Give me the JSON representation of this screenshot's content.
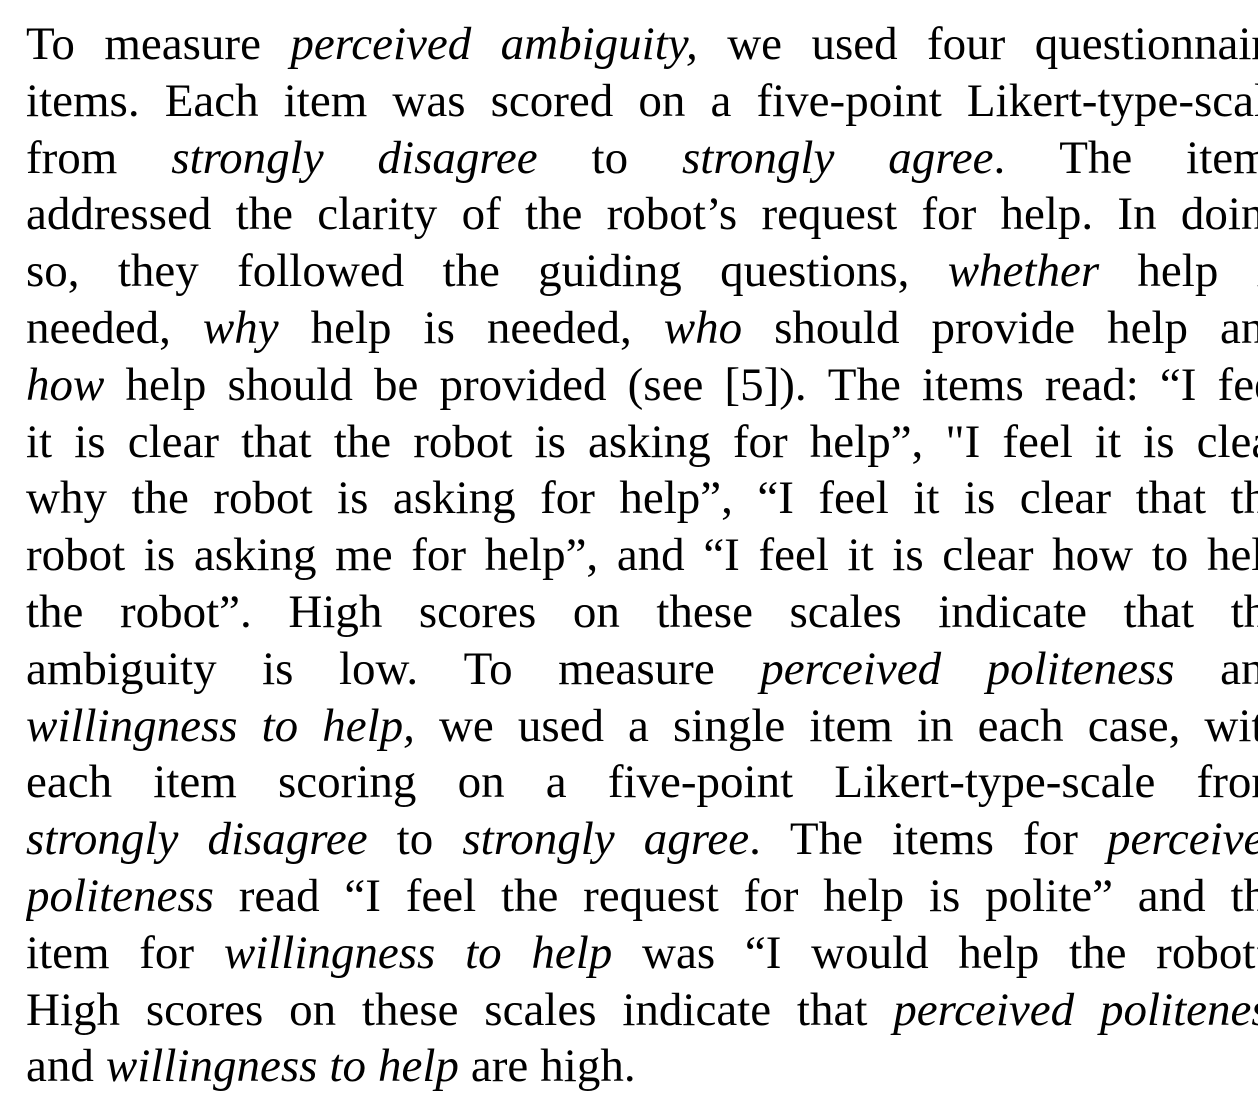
{
  "document": {
    "lines": [
      {
        "align": "justify",
        "words": [
          {
            "text": "To"
          },
          {
            "text": "measure"
          },
          {
            "text": "perceived",
            "italic": true
          },
          {
            "text": "ambiguity,",
            "italic": true
          },
          {
            "text": "we"
          },
          {
            "text": "used"
          },
          {
            "text": "four"
          },
          {
            "text": "questionnaire"
          }
        ]
      },
      {
        "align": "justify",
        "words": [
          {
            "text": "items."
          },
          {
            "text": "Each"
          },
          {
            "text": "item"
          },
          {
            "text": "was"
          },
          {
            "text": "scored"
          },
          {
            "text": "on"
          },
          {
            "text": "a"
          },
          {
            "text": "five-point"
          },
          {
            "text": "Likert-type-scale"
          }
        ]
      },
      {
        "align": "justify",
        "words": [
          {
            "text": "from"
          },
          {
            "text": "strongly",
            "italic": true
          },
          {
            "text": "disagree",
            "italic": true
          },
          {
            "text": "to"
          },
          {
            "text": "strongly",
            "italic": true
          },
          {
            "text": "agree",
            "italic": true,
            "suffix": "."
          },
          {
            "text": "The"
          },
          {
            "text": "items"
          }
        ]
      },
      {
        "align": "justify",
        "words": [
          {
            "text": "addressed"
          },
          {
            "text": "the"
          },
          {
            "text": "clarity"
          },
          {
            "text": "of"
          },
          {
            "text": "the"
          },
          {
            "text": "robot’s"
          },
          {
            "text": "request"
          },
          {
            "text": "for"
          },
          {
            "text": "help."
          },
          {
            "text": "In"
          },
          {
            "text": "doing"
          }
        ]
      },
      {
        "align": "justify",
        "words": [
          {
            "text": "so,"
          },
          {
            "text": "they"
          },
          {
            "text": "followed"
          },
          {
            "text": "the"
          },
          {
            "text": "guiding"
          },
          {
            "text": "questions,"
          },
          {
            "text": "whether",
            "italic": true
          },
          {
            "text": "help"
          },
          {
            "text": "is"
          }
        ]
      },
      {
        "align": "justify",
        "words": [
          {
            "text": "needed,"
          },
          {
            "text": "why",
            "italic": true
          },
          {
            "text": "help"
          },
          {
            "text": "is"
          },
          {
            "text": "needed,"
          },
          {
            "text": "who",
            "italic": true
          },
          {
            "text": "should"
          },
          {
            "text": "provide"
          },
          {
            "text": "help"
          },
          {
            "text": "and"
          }
        ]
      },
      {
        "align": "justify",
        "words": [
          {
            "text": "how",
            "italic": true
          },
          {
            "text": "help"
          },
          {
            "text": "should"
          },
          {
            "text": "be"
          },
          {
            "text": "provided"
          },
          {
            "text": "(see"
          },
          {
            "text": "[5])."
          },
          {
            "text": "The"
          },
          {
            "text": "items"
          },
          {
            "text": "read:"
          },
          {
            "text": "“I"
          },
          {
            "text": "feel"
          }
        ]
      },
      {
        "align": "justify",
        "words": [
          {
            "text": "it"
          },
          {
            "text": "is"
          },
          {
            "text": "clear"
          },
          {
            "text": "that"
          },
          {
            "text": "the"
          },
          {
            "text": "robot"
          },
          {
            "text": "is"
          },
          {
            "text": "asking"
          },
          {
            "text": "for"
          },
          {
            "text": "help”,"
          },
          {
            "text": "\"I"
          },
          {
            "text": "feel"
          },
          {
            "text": "it"
          },
          {
            "text": "is"
          },
          {
            "text": "clear"
          }
        ]
      },
      {
        "align": "justify",
        "words": [
          {
            "text": "why"
          },
          {
            "text": "the"
          },
          {
            "text": "robot"
          },
          {
            "text": "is"
          },
          {
            "text": "asking"
          },
          {
            "text": "for"
          },
          {
            "text": "help”,"
          },
          {
            "text": "“I"
          },
          {
            "text": "feel"
          },
          {
            "text": "it"
          },
          {
            "text": "is"
          },
          {
            "text": "clear"
          },
          {
            "text": "that"
          },
          {
            "text": "the"
          }
        ]
      },
      {
        "align": "justify",
        "words": [
          {
            "text": "robot"
          },
          {
            "text": "is"
          },
          {
            "text": "asking"
          },
          {
            "text": "me"
          },
          {
            "text": "for"
          },
          {
            "text": "help”,"
          },
          {
            "text": "and"
          },
          {
            "text": "“I"
          },
          {
            "text": "feel"
          },
          {
            "text": "it"
          },
          {
            "text": "is"
          },
          {
            "text": "clear"
          },
          {
            "text": "how"
          },
          {
            "text": "to"
          },
          {
            "text": "help"
          }
        ]
      },
      {
        "align": "justify",
        "words": [
          {
            "text": "the"
          },
          {
            "text": "robot”."
          },
          {
            "text": "High"
          },
          {
            "text": "scores"
          },
          {
            "text": "on"
          },
          {
            "text": "these"
          },
          {
            "text": "scales"
          },
          {
            "text": "indicate"
          },
          {
            "text": "that"
          },
          {
            "text": "the"
          }
        ]
      },
      {
        "align": "justify",
        "words": [
          {
            "text": "ambiguity"
          },
          {
            "text": "is"
          },
          {
            "text": "low."
          },
          {
            "text": "To"
          },
          {
            "text": "measure"
          },
          {
            "text": "perceived",
            "italic": true
          },
          {
            "text": "politeness",
            "italic": true
          },
          {
            "text": "and"
          }
        ]
      },
      {
        "align": "justify",
        "words": [
          {
            "text": "willingness",
            "italic": true
          },
          {
            "text": "to",
            "italic": true
          },
          {
            "text": "help,",
            "italic": true
          },
          {
            "text": "we"
          },
          {
            "text": "used"
          },
          {
            "text": "a"
          },
          {
            "text": "single"
          },
          {
            "text": "item"
          },
          {
            "text": "in"
          },
          {
            "text": "each"
          },
          {
            "text": "case,"
          },
          {
            "text": "with"
          }
        ]
      },
      {
        "align": "justify",
        "words": [
          {
            "text": "each"
          },
          {
            "text": "item"
          },
          {
            "text": "scoring"
          },
          {
            "text": "on"
          },
          {
            "text": "a"
          },
          {
            "text": "five-point"
          },
          {
            "text": "Likert-type-scale"
          },
          {
            "text": "from"
          }
        ]
      },
      {
        "align": "justify",
        "words": [
          {
            "text": "strongly",
            "italic": true
          },
          {
            "text": "disagree",
            "italic": true
          },
          {
            "text": "to"
          },
          {
            "text": "strongly",
            "italic": true
          },
          {
            "text": "agree",
            "italic": true,
            "suffix": "."
          },
          {
            "text": "The"
          },
          {
            "text": "items"
          },
          {
            "text": "for"
          },
          {
            "text": "perceived",
            "italic": true
          }
        ]
      },
      {
        "align": "justify",
        "words": [
          {
            "text": "politeness",
            "italic": true
          },
          {
            "text": "read"
          },
          {
            "text": "“I"
          },
          {
            "text": "feel"
          },
          {
            "text": "the"
          },
          {
            "text": "request"
          },
          {
            "text": "for"
          },
          {
            "text": "help"
          },
          {
            "text": "is"
          },
          {
            "text": "polite”"
          },
          {
            "text": "and"
          },
          {
            "text": "the"
          }
        ]
      },
      {
        "align": "justify",
        "words": [
          {
            "text": "item"
          },
          {
            "text": "for"
          },
          {
            "text": "willingness",
            "italic": true
          },
          {
            "text": "to",
            "italic": true
          },
          {
            "text": "help",
            "italic": true
          },
          {
            "text": "was"
          },
          {
            "text": "“I"
          },
          {
            "text": "would"
          },
          {
            "text": "help"
          },
          {
            "text": "the"
          },
          {
            "text": "robot”."
          }
        ]
      },
      {
        "align": "justify",
        "words": [
          {
            "text": "High"
          },
          {
            "text": "scores"
          },
          {
            "text": "on"
          },
          {
            "text": "these"
          },
          {
            "text": "scales"
          },
          {
            "text": "indicate"
          },
          {
            "text": "that"
          },
          {
            "text": "perceived",
            "italic": true
          },
          {
            "text": "politeness",
            "italic": true
          }
        ]
      },
      {
        "align": "ragged",
        "words": [
          {
            "text": "and"
          },
          {
            "text": "willingness",
            "italic": true
          },
          {
            "text": "to",
            "italic": true
          },
          {
            "text": "help",
            "italic": true
          },
          {
            "text": "are"
          },
          {
            "text": "high."
          }
        ]
      }
    ]
  }
}
